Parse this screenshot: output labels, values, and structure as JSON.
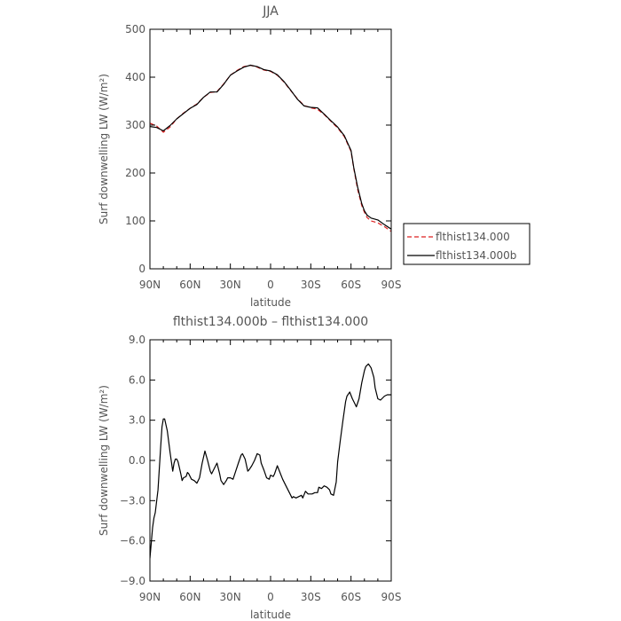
{
  "chart_data": [
    {
      "type": "line",
      "title": "JJA",
      "xlabel": "latitude",
      "ylabel": "Surf downwelling LW (W/m²)",
      "xlim": [
        90,
        -90
      ],
      "ylim": [
        0,
        500
      ],
      "x_ticks": [
        90,
        60,
        30,
        0,
        -30,
        -60,
        -90
      ],
      "x_tick_labels": [
        "90N",
        "60N",
        "30N",
        "0",
        "30S",
        "60S",
        "90S"
      ],
      "y_ticks": [
        0,
        100,
        200,
        300,
        400,
        500
      ],
      "y_tick_labels": [
        "0",
        "100",
        "200",
        "300",
        "400",
        "500"
      ],
      "legend_position": "outside-right",
      "series": [
        {
          "name": "flthist134.000",
          "color": "#dd2222",
          "dash": "dashed",
          "x": [
            90,
            85,
            80,
            75,
            70,
            65,
            60,
            55,
            50,
            45,
            40,
            35,
            30,
            25,
            20,
            15,
            10,
            5,
            0,
            -5,
            -10,
            -15,
            -20,
            -25,
            -30,
            -35,
            -40,
            -45,
            -50,
            -55,
            -60,
            -62,
            -65,
            -68,
            -70,
            -72,
            -75,
            -80,
            -85,
            -90
          ],
          "y": [
            304,
            298,
            285,
            296,
            313,
            325,
            335,
            344,
            358,
            368,
            370,
            386,
            404,
            414,
            422,
            425,
            421,
            415,
            412,
            404,
            390,
            372,
            355,
            341,
            336,
            333,
            322,
            308,
            294,
            276,
            245,
            210,
            165,
            132,
            118,
            107,
            100,
            96,
            88,
            78
          ]
        },
        {
          "name": "flthist134.000b",
          "color": "#000000",
          "dash": "solid",
          "x": [
            90,
            85,
            80,
            75,
            70,
            65,
            60,
            55,
            50,
            45,
            40,
            35,
            30,
            25,
            20,
            15,
            10,
            5,
            0,
            -5,
            -10,
            -15,
            -20,
            -25,
            -30,
            -35,
            -40,
            -45,
            -50,
            -55,
            -60,
            -62,
            -65,
            -68,
            -70,
            -72,
            -75,
            -80,
            -85,
            -90
          ],
          "y": [
            297,
            295,
            288,
            299,
            313,
            324,
            335,
            343,
            358,
            369,
            369,
            385,
            404,
            413,
            421,
            425,
            422,
            416,
            413,
            405,
            391,
            373,
            354,
            340,
            337,
            336,
            323,
            309,
            296,
            278,
            247,
            212,
            170,
            136,
            121,
            112,
            106,
            102,
            92,
            83
          ]
        }
      ]
    },
    {
      "type": "line",
      "title": "flthist134.000b – flthist134.000",
      "xlabel": "latitude",
      "ylabel": "Surf downwelling LW (W/m²)",
      "xlim": [
        90,
        -90
      ],
      "ylim": [
        -9.0,
        9.0
      ],
      "x_ticks": [
        90,
        60,
        30,
        0,
        -30,
        -60,
        -90
      ],
      "x_tick_labels": [
        "90N",
        "60N",
        "30N",
        "0",
        "30S",
        "60S",
        "90S"
      ],
      "y_ticks": [
        -9.0,
        -6.0,
        -3.0,
        0.0,
        3.0,
        6.0,
        9.0
      ],
      "y_tick_labels": [
        "−9.0",
        "−6.0",
        "−3.0",
        "0.0",
        "3.0",
        "6.0",
        "9.0"
      ],
      "series": [
        {
          "color": "#000000",
          "dash": "solid",
          "x": [
            90,
            88,
            87,
            86,
            84,
            82,
            81,
            80,
            79,
            77,
            75,
            73,
            72,
            71,
            70,
            69,
            67,
            66,
            65,
            63,
            62,
            61,
            59,
            57,
            55,
            53,
            51,
            49,
            47,
            45,
            44,
            42,
            40,
            38,
            37,
            35,
            33,
            32,
            30,
            28,
            26,
            24,
            22,
            21,
            19,
            17,
            16,
            14,
            12,
            10,
            8,
            7,
            5,
            3,
            1,
            0,
            -2,
            -3,
            -5,
            -7,
            -9,
            -10,
            -12,
            -14,
            -16,
            -17,
            -19,
            -21,
            -23,
            -24,
            -26,
            -28,
            -30,
            -31,
            -33,
            -35,
            -36,
            -38,
            -40,
            -42,
            -44,
            -45,
            -47,
            -49,
            -50,
            -52,
            -54,
            -56,
            -57,
            -59,
            -61,
            -63,
            -64,
            -66,
            -68,
            -70,
            -71,
            -73,
            -75,
            -77,
            -78,
            -80,
            -82,
            -83,
            -85,
            -87,
            -88,
            -90
          ],
          "y": [
            -7.3,
            -5.0,
            -4.3,
            -3.9,
            -2.2,
            1.0,
            2.5,
            3.1,
            3.1,
            2.2,
            0.6,
            -0.8,
            -0.2,
            0.1,
            0.1,
            -0.1,
            -1.0,
            -1.5,
            -1.3,
            -1.2,
            -0.9,
            -1.0,
            -1.4,
            -1.5,
            -1.7,
            -1.3,
            -0.2,
            0.7,
            0.0,
            -0.8,
            -1.0,
            -0.6,
            -0.2,
            -1.0,
            -1.5,
            -1.8,
            -1.5,
            -1.3,
            -1.3,
            -1.4,
            -0.8,
            -0.2,
            0.4,
            0.5,
            0.1,
            -0.8,
            -0.7,
            -0.4,
            0.0,
            0.5,
            0.4,
            -0.2,
            -0.7,
            -1.3,
            -1.4,
            -1.1,
            -1.2,
            -1.0,
            -0.4,
            -0.9,
            -1.4,
            -1.6,
            -2.0,
            -2.4,
            -2.8,
            -2.7,
            -2.8,
            -2.7,
            -2.6,
            -2.8,
            -2.3,
            -2.5,
            -2.5,
            -2.5,
            -2.4,
            -2.4,
            -2.0,
            -2.1,
            -1.9,
            -2.0,
            -2.2,
            -2.5,
            -2.6,
            -1.6,
            -0.1,
            1.5,
            3.0,
            4.4,
            4.8,
            5.1,
            4.6,
            4.2,
            4.0,
            4.6,
            5.8,
            6.7,
            7.0,
            7.2,
            6.9,
            6.2,
            5.4,
            4.6,
            4.5,
            4.6,
            4.8,
            4.9,
            4.9,
            4.9
          ]
        }
      ]
    }
  ]
}
